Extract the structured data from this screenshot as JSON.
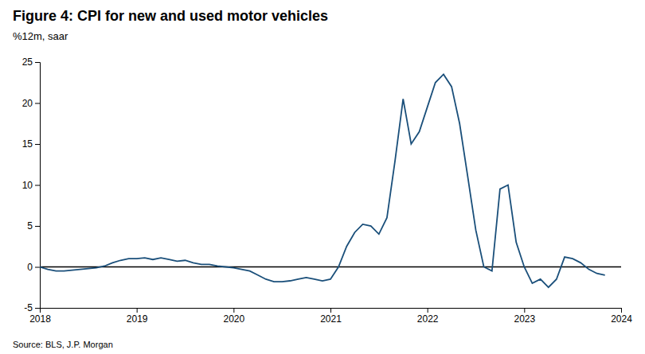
{
  "chart_data": {
    "type": "line",
    "title": "Figure 4: CPI for new and used motor vehicles",
    "subtitle": "%12m, saar",
    "source": "Source: BLS, J.P. Morgan",
    "color": "#1a4f7a",
    "grid": false,
    "xlim": [
      2018.0,
      2024.0
    ],
    "xticks": [
      2018,
      2019,
      2020,
      2021,
      2022,
      2023,
      2024
    ],
    "ylim": [
      -5,
      25
    ],
    "yticks": [
      -5,
      0,
      5,
      10,
      15,
      20,
      25
    ],
    "x": [
      2018.0,
      2018.083,
      2018.167,
      2018.25,
      2018.333,
      2018.417,
      2018.5,
      2018.583,
      2018.667,
      2018.75,
      2018.833,
      2018.917,
      2019.0,
      2019.083,
      2019.167,
      2019.25,
      2019.333,
      2019.417,
      2019.5,
      2019.583,
      2019.667,
      2019.75,
      2019.833,
      2019.917,
      2020.0,
      2020.083,
      2020.167,
      2020.25,
      2020.333,
      2020.417,
      2020.5,
      2020.583,
      2020.667,
      2020.75,
      2020.833,
      2020.917,
      2021.0,
      2021.083,
      2021.167,
      2021.25,
      2021.333,
      2021.417,
      2021.5,
      2021.583,
      2021.667,
      2021.75,
      2021.833,
      2021.917,
      2022.0,
      2022.083,
      2022.167,
      2022.25,
      2022.333,
      2022.417,
      2022.5,
      2022.583,
      2022.667,
      2022.75,
      2022.833,
      2022.917,
      2023.0,
      2023.083,
      2023.167,
      2023.25,
      2023.333,
      2023.417,
      2023.5,
      2023.583,
      2023.667,
      2023.75,
      2023.833
    ],
    "values": [
      0.0,
      -0.3,
      -0.5,
      -0.5,
      -0.4,
      -0.3,
      -0.2,
      -0.1,
      0.1,
      0.5,
      0.8,
      1.0,
      1.0,
      1.1,
      0.9,
      1.1,
      0.9,
      0.7,
      0.8,
      0.5,
      0.3,
      0.3,
      0.1,
      0.0,
      -0.1,
      -0.3,
      -0.5,
      -1.0,
      -1.5,
      -1.8,
      -1.8,
      -1.7,
      -1.5,
      -1.3,
      -1.5,
      -1.7,
      -1.5,
      0.0,
      2.5,
      4.2,
      5.2,
      5.0,
      4.0,
      6.0,
      13.0,
      20.5,
      15.0,
      16.5,
      19.5,
      22.5,
      23.5,
      22.0,
      17.5,
      11.0,
      4.5,
      0.0,
      -0.5,
      9.5,
      10.0,
      3.0,
      0.0,
      -2.0,
      -1.5,
      -2.5,
      -1.5,
      1.2,
      1.0,
      0.5,
      -0.3,
      -0.8,
      -1.0
    ]
  }
}
